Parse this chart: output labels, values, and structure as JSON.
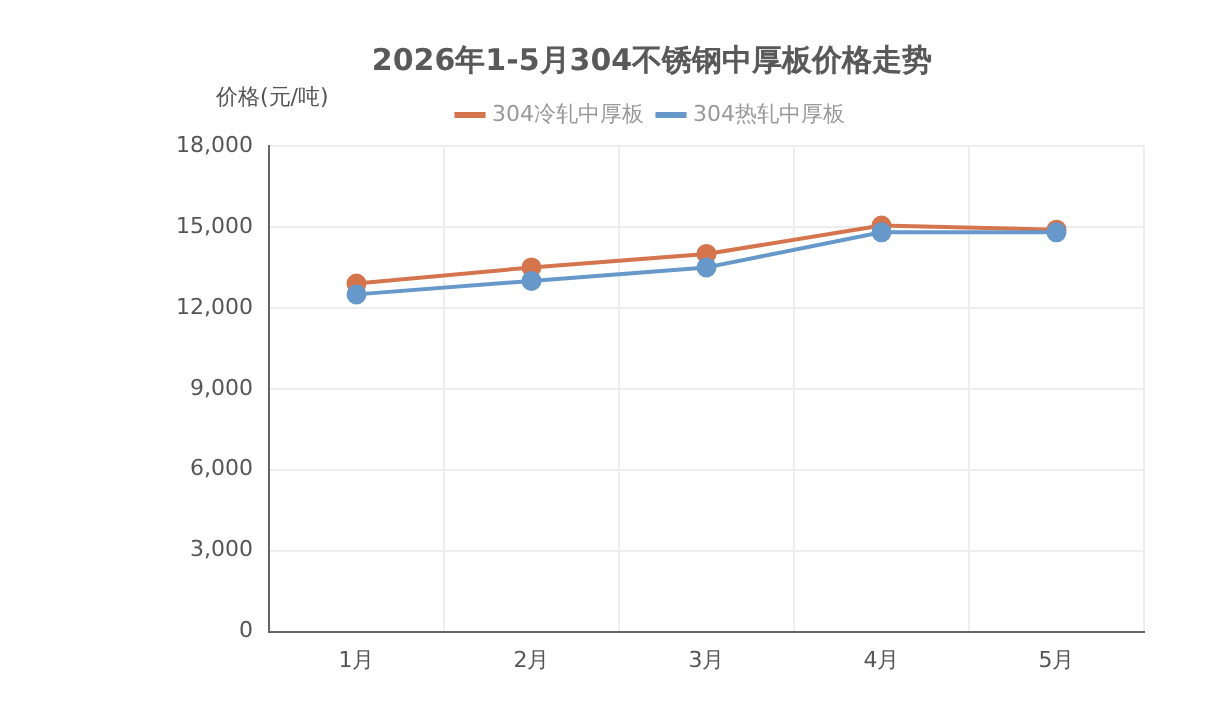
{
  "chart_data": {
    "type": "line",
    "title": "2026年1-5月304不锈钢中厚板价格走势",
    "ylabel": "价格(元/吨)",
    "categories": [
      "1月",
      "2月",
      "3月",
      "4月",
      "5月"
    ],
    "series": [
      {
        "name": "304冷轧中厚板",
        "color": "#d4754e",
        "values": [
          12900,
          13500,
          14000,
          15050,
          14900
        ]
      },
      {
        "name": "304热轧中厚板",
        "color": "#6699c9",
        "values": [
          12500,
          13000,
          13500,
          14800,
          14800
        ]
      }
    ],
    "ylim": [
      0,
      18000
    ],
    "yticks": [
      {
        "value": 0,
        "label": "0"
      },
      {
        "value": 3000,
        "label": "3,000"
      },
      {
        "value": 6000,
        "label": "6,000"
      },
      {
        "value": 9000,
        "label": "9,000"
      },
      {
        "value": 12000,
        "label": "12,000"
      },
      {
        "value": 15000,
        "label": "15,000"
      },
      {
        "value": 18000,
        "label": "18,000"
      }
    ],
    "grid": true,
    "legend": "top",
    "marker": "circle",
    "line_style": "solid"
  }
}
